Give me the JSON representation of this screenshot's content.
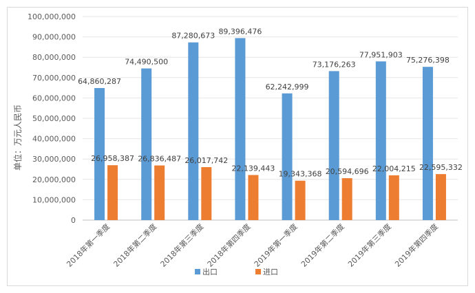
{
  "chart_data": {
    "type": "bar",
    "title": "",
    "xlabel": "",
    "ylabel": "单位：万元人民币",
    "ylim": [
      0,
      100000000
    ],
    "yticks": [
      0,
      10000000,
      20000000,
      30000000,
      40000000,
      50000000,
      60000000,
      70000000,
      80000000,
      90000000,
      100000000
    ],
    "ytick_labels": [
      "0",
      "10,000,000",
      "20,000,000",
      "30,000,000",
      "40,000,000",
      "50,000,000",
      "60,000,000",
      "70,000,000",
      "80,000,000",
      "90,000,000",
      "100,000,000"
    ],
    "grid": true,
    "legend_position": "bottom",
    "categories": [
      "2018年第一季度",
      "2018年第二季度",
      "2018年第三季度",
      "2018年第四季度",
      "2019年第一季度",
      "2019年第二季度",
      "2019年第三季度",
      "2019年第四季度"
    ],
    "series": [
      {
        "name": "出口",
        "color": "#5b9bd5",
        "values": [
          64860287,
          74490500,
          87280673,
          89396476,
          62242999,
          73176263,
          77951903,
          75276398
        ],
        "labels": [
          "64,860,287",
          "74,490,500",
          "87,280,673",
          "89,396,476",
          "62,242,999",
          "73,176,263",
          "77,951,903",
          "75,276,398"
        ]
      },
      {
        "name": "进口",
        "color": "#ed7d31",
        "values": [
          26958387,
          26836487,
          26017742,
          22139443,
          19343368,
          20594696,
          22004215,
          22595332
        ],
        "labels": [
          "26,958,387",
          "26,836,487",
          "26,017,742",
          "22,139,443",
          "19,343,368",
          "20,594,696",
          "22,004,215",
          "22,595,332"
        ]
      }
    ]
  }
}
